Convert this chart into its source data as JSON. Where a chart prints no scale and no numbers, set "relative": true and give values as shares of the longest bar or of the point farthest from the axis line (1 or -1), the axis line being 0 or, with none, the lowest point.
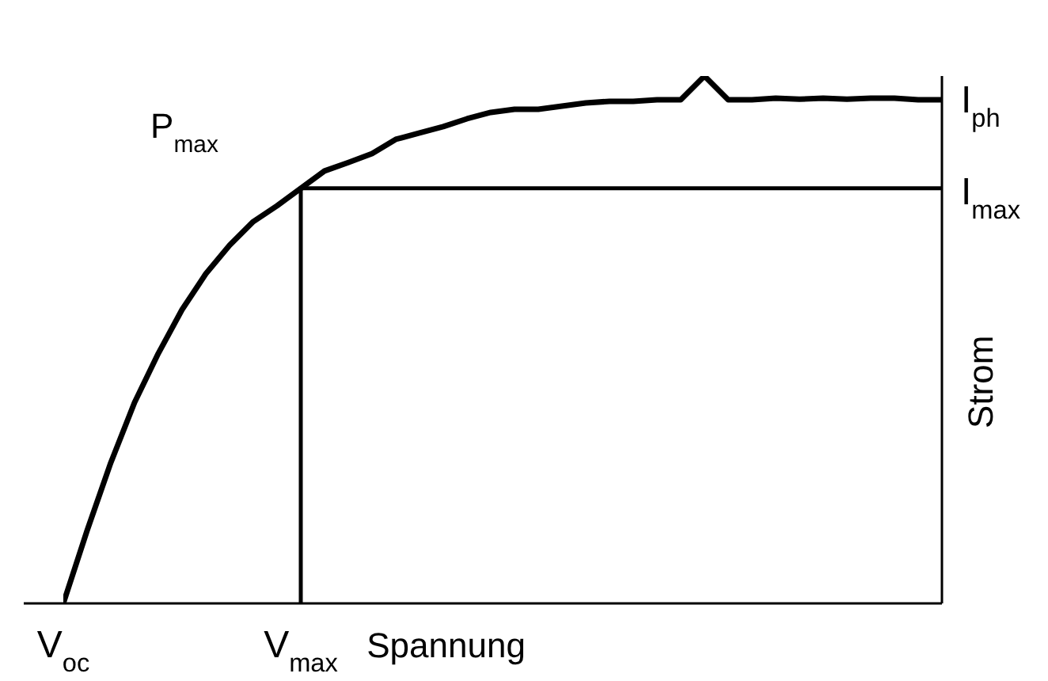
{
  "chart_data": {
    "type": "line",
    "relative": true,
    "xlabel": "Spannung",
    "ylabel": "Strom",
    "categories": [
      "V$_{oc}$",
      null,
      null,
      null,
      null,
      null,
      null,
      null,
      null,
      null,
      "V$_{max}$",
      null,
      null,
      null,
      null,
      null,
      null,
      null,
      null,
      null,
      null,
      null,
      null,
      null,
      null,
      null,
      null,
      null,
      null,
      null,
      null,
      null,
      null,
      null,
      null,
      null,
      null,
      null
    ],
    "values": [
      0,
      0.138,
      0.267,
      0.381,
      0.474,
      0.557,
      0.625,
      0.679,
      0.724,
      0.754,
      0.787,
      0.82,
      0.836,
      0.853,
      0.88,
      0.892,
      0.904,
      0.919,
      0.931,
      0.937,
      0.937,
      0.943,
      0.949,
      0.952,
      0.952,
      0.955,
      0.955,
      1,
      0.955,
      0.955,
      0.958,
      0.956,
      0.958,
      0.956,
      0.958,
      0.958,
      0.955,
      0.955
    ],
    "color": "#000000",
    "ref_lines": [
      {
        "axis": "x",
        "value": "V$_{max}$"
      },
      {
        "axis": "y",
        "value": 0.787,
        "label": "I$_{max}$"
      }
    ],
    "annotations": [
      {
        "text": "P$_{max}$",
        "x": "V$_{max}$",
        "y": 0.787
      },
      "I$_{ph}$"
    ]
  }
}
